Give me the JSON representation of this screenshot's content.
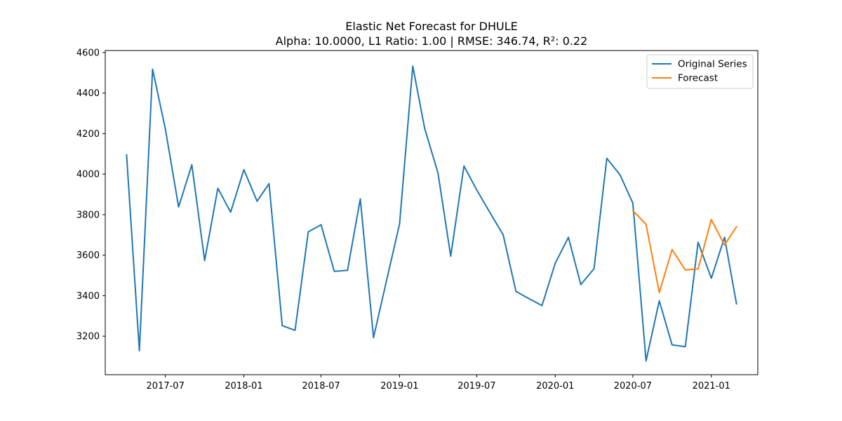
{
  "chart_data": {
    "type": "line",
    "title": "Elastic Net Forecast for DHULE",
    "subtitle": "Alpha: 10.0000, L1 Ratio: 1.00 | RMSE: 346.74, R²: 0.22",
    "xlabel": "",
    "ylabel": "",
    "grid": false,
    "legend_position": "top-right",
    "xlim": [
      "2017-02-10",
      "2021-04-20"
    ],
    "ylim": [
      3010,
      4610
    ],
    "y_ticks": [
      3200,
      3400,
      3600,
      3800,
      4000,
      4200,
      4400,
      4600
    ],
    "x_ticks": [
      "2017-07-01",
      "2018-01-01",
      "2018-07-01",
      "2019-01-01",
      "2019-07-01",
      "2020-01-01",
      "2020-07-01",
      "2021-01-01"
    ],
    "x_tick_labels": [
      "2017-07",
      "2018-01",
      "2018-07",
      "2019-01",
      "2019-07",
      "2020-01",
      "2020-07",
      "2021-01"
    ],
    "series": [
      {
        "name": "Original Series",
        "color": "#1f77b4",
        "x": [
          "2017-04-01",
          "2017-05-01",
          "2017-06-01",
          "2017-07-01",
          "2017-08-01",
          "2017-09-01",
          "2017-10-01",
          "2017-11-01",
          "2017-12-01",
          "2018-01-01",
          "2018-02-01",
          "2018-03-01",
          "2018-04-01",
          "2018-05-01",
          "2018-06-01",
          "2018-07-01",
          "2018-08-01",
          "2018-09-01",
          "2018-10-01",
          "2018-11-01",
          "2018-12-01",
          "2019-01-01",
          "2019-02-01",
          "2019-03-01",
          "2019-04-01",
          "2019-05-01",
          "2019-06-01",
          "2019-07-01",
          "2019-08-01",
          "2019-09-01",
          "2019-10-01",
          "2019-11-01",
          "2019-12-01",
          "2020-01-01",
          "2020-02-01",
          "2020-03-01",
          "2020-04-01",
          "2020-05-01",
          "2020-06-01",
          "2020-07-01",
          "2020-08-01",
          "2020-09-01",
          "2020-10-01",
          "2020-11-01",
          "2020-12-01",
          "2021-01-01",
          "2021-02-01",
          "2021-03-01"
        ],
        "values": [
          4095,
          3128,
          4518,
          4222,
          3838,
          4046,
          3573,
          3930,
          3812,
          4022,
          3866,
          3953,
          3252,
          3229,
          3715,
          3750,
          3520,
          3525,
          3878,
          3193,
          3470,
          3753,
          4533,
          4225,
          4007,
          3595,
          4040,
          3922,
          3810,
          3700,
          3421,
          3385,
          3351,
          3560,
          3688,
          3455,
          3533,
          4078,
          3996,
          3857,
          3078,
          3375,
          3157,
          3148,
          3664,
          3486,
          3688,
          3360
        ]
      },
      {
        "name": "Forecast",
        "color": "#ff7f0e",
        "x": [
          "2020-07-01",
          "2020-08-01",
          "2020-09-01",
          "2020-10-01",
          "2020-11-01",
          "2020-12-01",
          "2021-01-01",
          "2021-02-01",
          "2021-03-01"
        ],
        "values": [
          3820,
          3752,
          3415,
          3628,
          3527,
          3532,
          3776,
          3650,
          3740
        ]
      }
    ]
  }
}
